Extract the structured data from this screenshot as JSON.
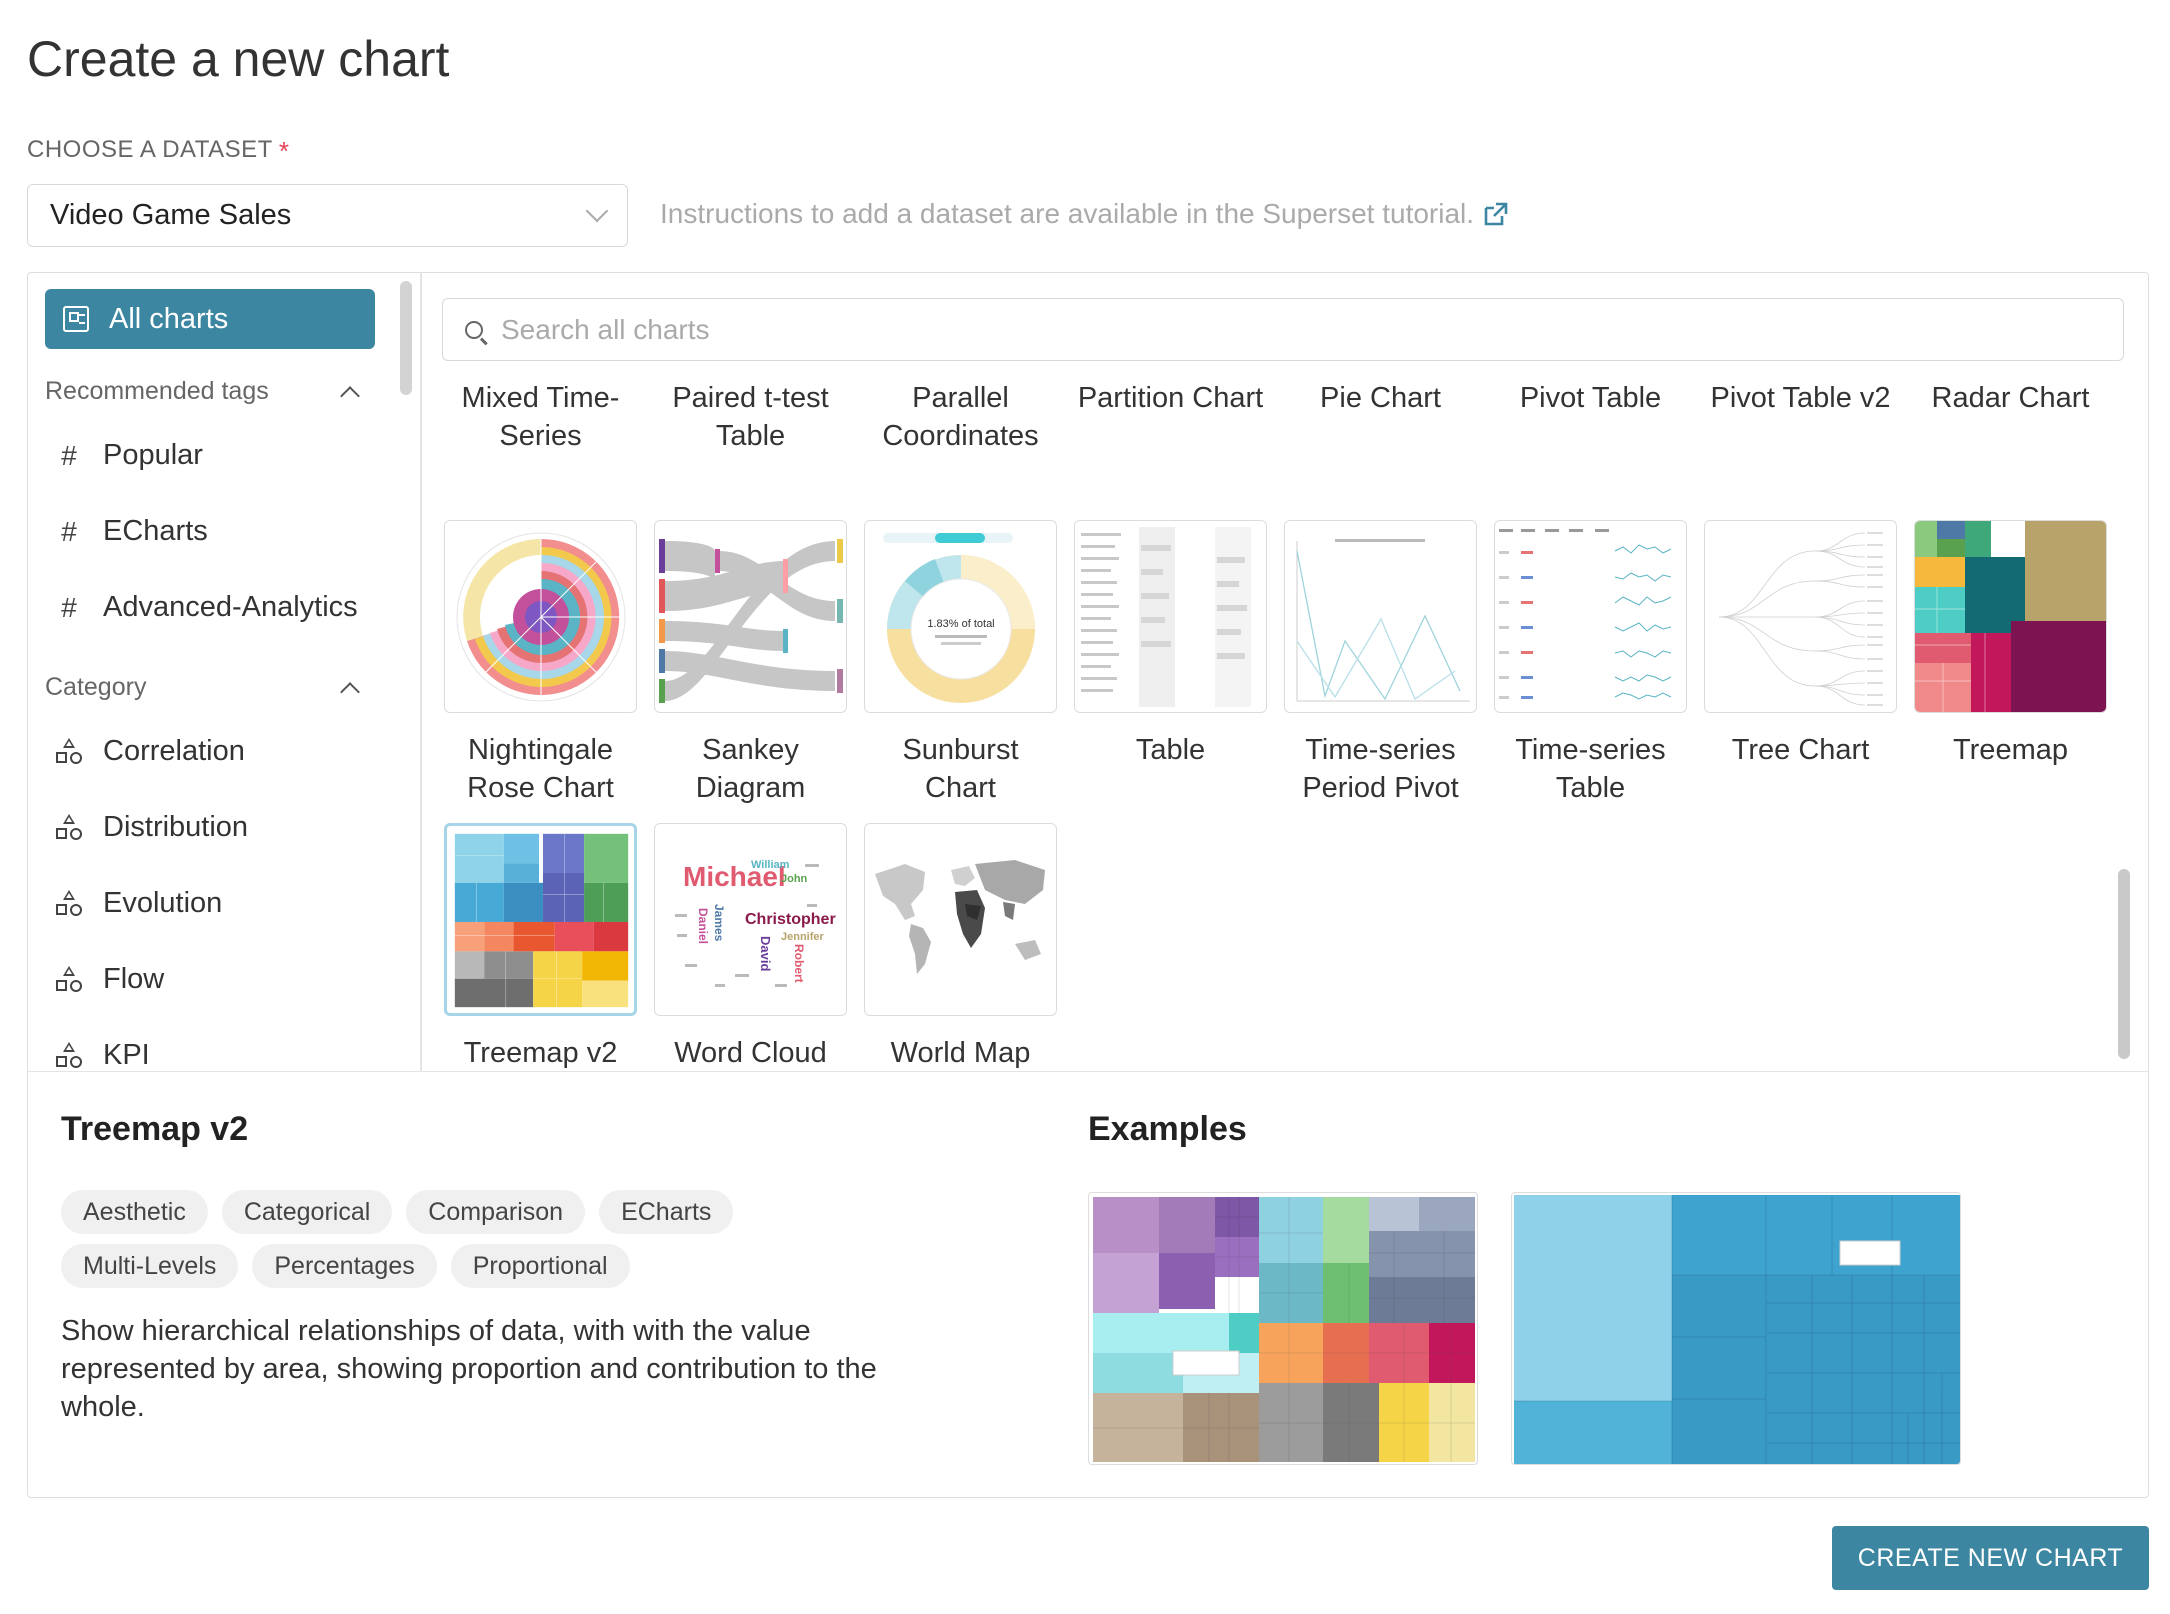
{
  "page": {
    "title": "Create a new chart"
  },
  "dataset": {
    "label": "CHOOSE A DATASET",
    "required_mark": "*",
    "selected": "Video Game Sales",
    "hint": "Instructions to add a dataset are available in the Superset tutorial."
  },
  "sidebar": {
    "all_charts": "All charts",
    "recommended_head": "Recommended tags",
    "tags": [
      "Popular",
      "ECharts",
      "Advanced-Analytics"
    ],
    "category_head": "Category",
    "categories": [
      "Correlation",
      "Distribution",
      "Evolution",
      "Flow",
      "KPI"
    ]
  },
  "search": {
    "placeholder": "Search all charts"
  },
  "charts": {
    "row1": [
      "Mixed Time-Series",
      "Paired t-test Table",
      "Parallel Coordinates",
      "Partition Chart",
      "Pie Chart",
      "Pivot Table",
      "Pivot Table v2",
      "Radar Chart"
    ],
    "row2": [
      "Nightingale Rose Chart",
      "Sankey Diagram",
      "Sunburst Chart",
      "Table",
      "Time-series Period Pivot",
      "Time-series Table",
      "Tree Chart",
      "Treemap"
    ],
    "row3": [
      "Treemap v2",
      "Word Cloud",
      "World Map"
    ],
    "selected": "Treemap v2"
  },
  "details": {
    "title": "Treemap v2",
    "examples_title": "Examples",
    "tags": [
      "Aesthetic",
      "Categorical",
      "Comparison",
      "ECharts",
      "Multi-Levels",
      "Percentages",
      "Proportional"
    ],
    "description": "Show hierarchical relationships of data, with with the value represented by area, showing proportion and contribution to the whole."
  },
  "sunburst_thumb": {
    "center_text": "1.83% of total"
  },
  "wordcloud_thumb": {
    "words": [
      "Michael",
      "Christopher",
      "David",
      "Jennifer",
      "Robert",
      "William",
      "James",
      "Daniel",
      "John"
    ]
  },
  "actions": {
    "create": "CREATE NEW CHART"
  },
  "colors": {
    "accent": "#3d86a1",
    "required": "#e04355"
  }
}
